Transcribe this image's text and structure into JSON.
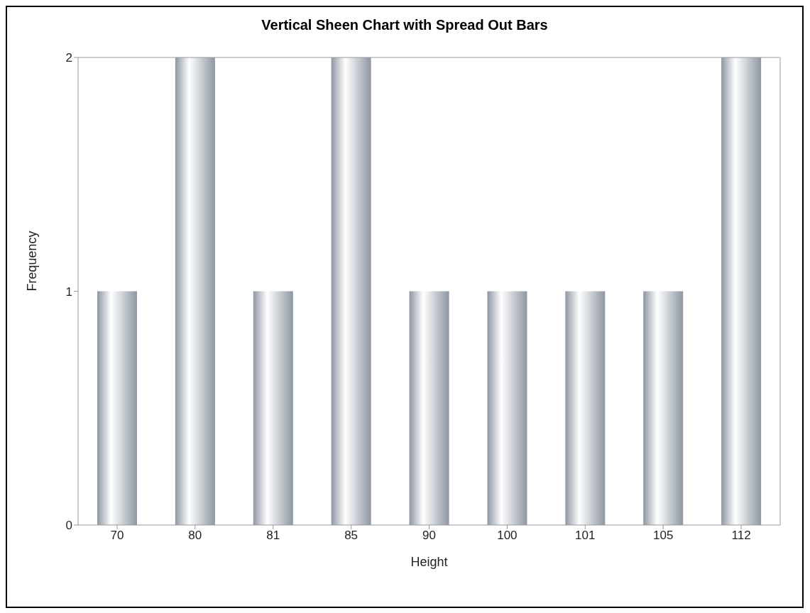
{
  "chart_data": {
    "type": "bar",
    "title": "Vertical Sheen Chart with Spread Out Bars",
    "xlabel": "Height",
    "ylabel": "Frequency",
    "categories": [
      "70",
      "80",
      "81",
      "85",
      "90",
      "100",
      "101",
      "105",
      "112"
    ],
    "values": [
      1,
      2,
      1,
      2,
      1,
      1,
      1,
      1,
      2
    ],
    "color": "#8d96a2",
    "ylim": [
      0,
      2
    ],
    "yticks": [
      0,
      1,
      2
    ],
    "grid": false,
    "legend": false
  }
}
